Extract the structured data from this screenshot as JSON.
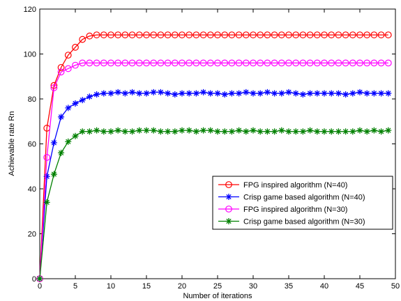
{
  "chart_data": {
    "type": "line",
    "xlabel": "Number of iterations",
    "ylabel": "Achievable rate Rn",
    "xlim": [
      0,
      50
    ],
    "ylim": [
      0,
      120
    ],
    "xticks": [
      0,
      5,
      10,
      15,
      20,
      25,
      30,
      35,
      40,
      45,
      50
    ],
    "yticks": [
      0,
      20,
      40,
      60,
      80,
      100,
      120
    ],
    "grid": false,
    "legend_position": "center-right",
    "series": [
      {
        "name": "FPG inspired algorithm (N=40)",
        "color": "#ff0000",
        "marker": "circle",
        "x": [
          0,
          1,
          2,
          3,
          4,
          5,
          6,
          7,
          8,
          9,
          10,
          11,
          12,
          13,
          14,
          15,
          16,
          17,
          18,
          19,
          20,
          21,
          22,
          23,
          24,
          25,
          26,
          27,
          28,
          29,
          30,
          31,
          32,
          33,
          34,
          35,
          36,
          37,
          38,
          39,
          40,
          41,
          42,
          43,
          44,
          45,
          46,
          47,
          48,
          49
        ],
        "values": [
          0,
          67,
          86,
          94,
          99.5,
          103,
          106.5,
          108,
          108.5,
          108.5,
          108.5,
          108.5,
          108.5,
          108.5,
          108.5,
          108.5,
          108.5,
          108.5,
          108.5,
          108.5,
          108.5,
          108.5,
          108.5,
          108.5,
          108.5,
          108.5,
          108.5,
          108.5,
          108.5,
          108.5,
          108.5,
          108.5,
          108.5,
          108.5,
          108.5,
          108.5,
          108.5,
          108.5,
          108.5,
          108.5,
          108.5,
          108.5,
          108.5,
          108.5,
          108.5,
          108.5,
          108.5,
          108.5,
          108.5,
          108.5
        ]
      },
      {
        "name": "Crisp game based algorithm (N=40)",
        "color": "#0000ff",
        "marker": "star",
        "x": [
          0,
          1,
          2,
          3,
          4,
          5,
          6,
          7,
          8,
          9,
          10,
          11,
          12,
          13,
          14,
          15,
          16,
          17,
          18,
          19,
          20,
          21,
          22,
          23,
          24,
          25,
          26,
          27,
          28,
          29,
          30,
          31,
          32,
          33,
          34,
          35,
          36,
          37,
          38,
          39,
          40,
          41,
          42,
          43,
          44,
          45,
          46,
          47,
          48,
          49
        ],
        "values": [
          0,
          45.5,
          60.5,
          72,
          76,
          78,
          79.5,
          81,
          82,
          82.5,
          82.5,
          83,
          82.5,
          83,
          82.5,
          82.5,
          83,
          83,
          82.5,
          82,
          82.5,
          82.5,
          82.5,
          83,
          82.5,
          82.5,
          82,
          82.5,
          82.5,
          83,
          82.5,
          82.5,
          83,
          82.5,
          82.5,
          83,
          82.5,
          82,
          82.5,
          82.5,
          82.5,
          82.5,
          82.5,
          82,
          82.5,
          83,
          82.5,
          82.5,
          82.5,
          82.5
        ]
      },
      {
        "name": "FPG inspired algorithm (N=30)",
        "color": "#ff00ff",
        "marker": "circle",
        "x": [
          0,
          1,
          2,
          3,
          4,
          5,
          6,
          7,
          8,
          9,
          10,
          11,
          12,
          13,
          14,
          15,
          16,
          17,
          18,
          19,
          20,
          21,
          22,
          23,
          24,
          25,
          26,
          27,
          28,
          29,
          30,
          31,
          32,
          33,
          34,
          35,
          36,
          37,
          38,
          39,
          40,
          41,
          42,
          43,
          44,
          45,
          46,
          47,
          48,
          49
        ],
        "values": [
          0,
          54,
          85,
          92,
          93.5,
          95,
          96,
          96,
          96,
          96,
          96,
          96,
          96,
          96,
          96,
          96,
          96,
          96,
          96,
          96,
          96,
          96,
          96,
          96,
          96,
          96,
          96,
          96,
          96,
          96,
          96,
          96,
          96,
          96,
          96,
          96,
          96,
          96,
          96,
          96,
          96,
          96,
          96,
          96,
          96,
          96,
          96,
          96,
          96,
          96
        ]
      },
      {
        "name": "Crisp game based algorithm (N=30)",
        "color": "#008000",
        "marker": "star",
        "x": [
          0,
          1,
          2,
          3,
          4,
          5,
          6,
          7,
          8,
          9,
          10,
          11,
          12,
          13,
          14,
          15,
          16,
          17,
          18,
          19,
          20,
          21,
          22,
          23,
          24,
          25,
          26,
          27,
          28,
          29,
          30,
          31,
          32,
          33,
          34,
          35,
          36,
          37,
          38,
          39,
          40,
          41,
          42,
          43,
          44,
          45,
          46,
          47,
          48,
          49
        ],
        "values": [
          0,
          34,
          46.5,
          56,
          61,
          63.5,
          65.5,
          65.5,
          66,
          65.5,
          65.5,
          66,
          65.5,
          65.5,
          66,
          66,
          66,
          65.5,
          65.5,
          65.5,
          66,
          66,
          65.5,
          66,
          66,
          65.5,
          65.5,
          65.5,
          66,
          65.5,
          66,
          65.5,
          65.5,
          65.5,
          66,
          65.5,
          65.5,
          65.5,
          66,
          65.5,
          65.5,
          65.5,
          65.5,
          65.5,
          65.5,
          66,
          65.5,
          66,
          65.5,
          66
        ]
      }
    ]
  }
}
